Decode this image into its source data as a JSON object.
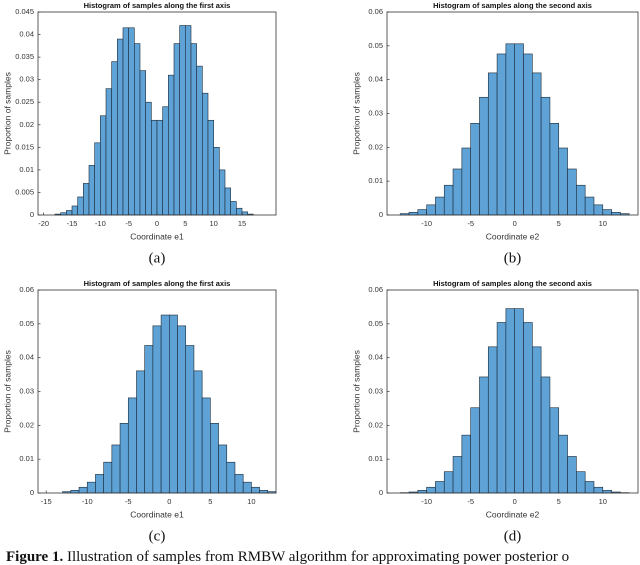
{
  "chart_data": [
    {
      "type": "histogram",
      "title": "Histogram of samples along the first axis",
      "xlabel": "Coordinate e1",
      "ylabel": "Proportion of samples",
      "color": "#5ea2d6",
      "bins": [
        -20,
        -19,
        -18,
        -17,
        -16,
        -15,
        -14,
        -13,
        -12,
        -11,
        -10,
        -9,
        -8,
        -7,
        -6,
        -5,
        -4,
        -3,
        -2,
        -1,
        0,
        1,
        2,
        3,
        4,
        5,
        6,
        7,
        8,
        9,
        10,
        11,
        12,
        13,
        14,
        15,
        16,
        17
      ],
      "values": [
        0,
        0,
        0.0002,
        0.0005,
        0.001,
        0.002,
        0.004,
        0.007,
        0.011,
        0.016,
        0.022,
        0.028,
        0.034,
        0.039,
        0.0415,
        0.0415,
        0.038,
        0.032,
        0.025,
        0.021,
        0.021,
        0.024,
        0.031,
        0.038,
        0.042,
        0.042,
        0.038,
        0.033,
        0.027,
        0.021,
        0.015,
        0.01,
        0.006,
        0.003,
        0.0015,
        0.0007,
        0.0002
      ],
      "xlim": [
        -21,
        21
      ],
      "ylim": [
        0,
        0.045
      ],
      "xticks": [
        -20,
        -15,
        -10,
        -5,
        0,
        5,
        10,
        15
      ],
      "yticks": [
        0,
        0.005,
        0.01,
        0.015,
        0.02,
        0.025,
        0.03,
        0.035,
        0.04,
        0.045
      ]
    },
    {
      "type": "histogram",
      "title": "Histogram of samples along the second axis",
      "xlabel": "Coordinate e2",
      "ylabel": "Proportion of samples",
      "color": "#5ea2d6",
      "bins": [
        -13,
        -12,
        -11,
        -10,
        -9,
        -8,
        -7,
        -6,
        -5,
        -4,
        -3,
        -2,
        -1,
        0,
        1,
        2,
        3,
        4,
        5,
        6,
        7,
        8,
        9,
        10,
        11,
        12,
        13
      ],
      "values": [
        0.0004,
        0.0008,
        0.0016,
        0.003,
        0.0053,
        0.0088,
        0.0136,
        0.0198,
        0.0271,
        0.0348,
        0.042,
        0.0476,
        0.0506,
        0.0506,
        0.0476,
        0.042,
        0.0348,
        0.0271,
        0.0198,
        0.0136,
        0.0088,
        0.0053,
        0.003,
        0.0016,
        0.0008,
        0.0004
      ],
      "xlim": [
        -14.5,
        14
      ],
      "ylim": [
        0,
        0.06
      ],
      "xticks": [
        -10,
        -5,
        0,
        5,
        10
      ],
      "yticks": [
        0,
        0.01,
        0.02,
        0.03,
        0.04,
        0.05,
        0.06
      ]
    },
    {
      "type": "histogram",
      "title": "Histogram of samples along the first axis",
      "xlabel": "Coordinate e1",
      "ylabel": "Proportion of samples",
      "color": "#5ea2d6",
      "bins": [
        -13,
        -12,
        -11,
        -10,
        -9,
        -8,
        -7,
        -6,
        -5,
        -4,
        -3,
        -2,
        -1,
        0,
        1,
        2,
        3,
        4,
        5,
        6,
        7,
        8,
        9,
        10,
        11,
        12,
        13
      ],
      "values": [
        0.0004,
        0.0008,
        0.0017,
        0.0032,
        0.0055,
        0.0091,
        0.0142,
        0.0206,
        0.0281,
        0.0361,
        0.0436,
        0.0494,
        0.0526,
        0.0526,
        0.0494,
        0.0436,
        0.0361,
        0.0281,
        0.0206,
        0.0142,
        0.0091,
        0.0055,
        0.0032,
        0.0017,
        0.0008,
        0.0004
      ],
      "xlim": [
        -16,
        13
      ],
      "ylim": [
        0,
        0.06
      ],
      "xticks": [
        -15,
        -10,
        -5,
        0,
        5,
        10
      ],
      "yticks": [
        0,
        0.01,
        0.02,
        0.03,
        0.04,
        0.05,
        0.06
      ]
    },
    {
      "type": "histogram",
      "title": "Histogram of samples along the second axis",
      "xlabel": "Coordinate e2",
      "ylabel": "Proportion of samples",
      "color": "#5ea2d6",
      "bins": [
        -13,
        -12,
        -11,
        -10,
        -9,
        -8,
        -7,
        -6,
        -5,
        -4,
        -3,
        -2,
        -1,
        0,
        1,
        2,
        3,
        4,
        5,
        6,
        7,
        8,
        9,
        10,
        11,
        12,
        13
      ],
      "values": [
        0.0001,
        0.0003,
        0.0008,
        0.0017,
        0.0034,
        0.0063,
        0.0108,
        0.0171,
        0.0252,
        0.0343,
        0.0432,
        0.0504,
        0.0545,
        0.0545,
        0.0504,
        0.0432,
        0.0343,
        0.0252,
        0.0171,
        0.0108,
        0.0063,
        0.0034,
        0.0017,
        0.0008,
        0.0003,
        0.0001
      ],
      "xlim": [
        -14.5,
        14
      ],
      "ylim": [
        0,
        0.06
      ],
      "xticks": [
        -10,
        -5,
        0,
        5,
        10
      ],
      "yticks": [
        0,
        0.01,
        0.02,
        0.03,
        0.04,
        0.05,
        0.06
      ]
    }
  ],
  "panel_labels": [
    "(a)",
    "(b)",
    "(c)",
    "(d)"
  ],
  "caption": {
    "label": "Figure 1.",
    "text": "Illustration of samples from RMBW algorithm for approximating power posterior o"
  }
}
